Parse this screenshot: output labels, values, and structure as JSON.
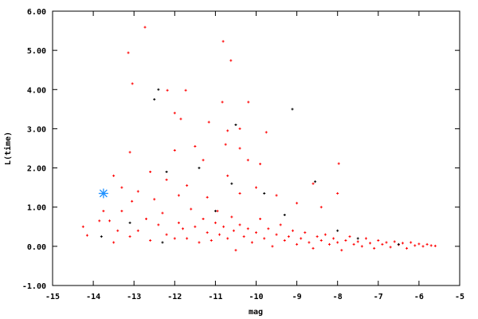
{
  "chart_data": {
    "type": "scatter",
    "title": "",
    "xlabel": "mag",
    "ylabel": "L(time)",
    "xlim": [
      -15,
      -5
    ],
    "ylim": [
      -1,
      6
    ],
    "xticks": [
      "-15",
      "-14",
      "-13",
      "-12",
      "-11",
      "-10",
      "-9",
      "-8",
      "-7",
      "-6",
      "-5"
    ],
    "yticks": [
      "-1.00",
      "0.00",
      "1.00",
      "2.00",
      "3.00",
      "4.00",
      "5.00",
      "6.00"
    ],
    "grid": false,
    "legend": "none",
    "series": [
      {
        "color": "#ff0000",
        "marker": "plus",
        "points": [
          [
            -12.73,
            5.59
          ],
          [
            -13.14,
            4.94
          ],
          [
            -13.04,
            4.15
          ],
          [
            -10.81,
            5.23
          ],
          [
            -10.62,
            4.74
          ],
          [
            -12.18,
            3.98
          ],
          [
            -11.73,
            3.98
          ],
          [
            -10.83,
            3.68
          ],
          [
            -10.19,
            3.68
          ],
          [
            -11.16,
            3.17
          ],
          [
            -12.0,
            3.4
          ],
          [
            -11.85,
            3.25
          ],
          [
            -10.4,
            3.0
          ],
          [
            -10.7,
            2.95
          ],
          [
            -9.75,
            2.91
          ],
          [
            -13.1,
            2.4
          ],
          [
            -12.0,
            2.45
          ],
          [
            -11.5,
            2.55
          ],
          [
            -10.75,
            2.6
          ],
          [
            -10.4,
            2.5
          ],
          [
            -11.3,
            2.2
          ],
          [
            -10.2,
            2.2
          ],
          [
            -9.9,
            2.1
          ],
          [
            -7.97,
            2.11
          ],
          [
            -13.5,
            1.8
          ],
          [
            -12.6,
            1.9
          ],
          [
            -12.2,
            1.7
          ],
          [
            -11.7,
            1.55
          ],
          [
            -10.7,
            1.8
          ],
          [
            -10.0,
            1.5
          ],
          [
            -9.5,
            1.3
          ],
          [
            -8.6,
            1.6
          ],
          [
            -8.0,
            1.35
          ],
          [
            -13.3,
            1.5
          ],
          [
            -12.9,
            1.4
          ],
          [
            -13.05,
            1.15
          ],
          [
            -12.5,
            1.2
          ],
          [
            -11.9,
            1.3
          ],
          [
            -11.2,
            1.25
          ],
          [
            -10.4,
            1.35
          ],
          [
            -9.0,
            1.1
          ],
          [
            -8.4,
            1.0
          ],
          [
            -14.25,
            0.5
          ],
          [
            -14.15,
            0.28
          ],
          [
            -13.85,
            0.65
          ],
          [
            -13.75,
            0.9
          ],
          [
            -13.6,
            0.65
          ],
          [
            -13.4,
            0.4
          ],
          [
            -13.3,
            0.9
          ],
          [
            -13.5,
            0.1
          ],
          [
            -13.1,
            0.25
          ],
          [
            -12.9,
            0.4
          ],
          [
            -12.7,
            0.7
          ],
          [
            -12.6,
            0.15
          ],
          [
            -12.4,
            0.55
          ],
          [
            -12.3,
            0.85
          ],
          [
            -12.2,
            0.3
          ],
          [
            -12.0,
            0.2
          ],
          [
            -11.9,
            0.6
          ],
          [
            -11.8,
            0.45
          ],
          [
            -11.7,
            0.2
          ],
          [
            -11.6,
            0.95
          ],
          [
            -11.5,
            0.5
          ],
          [
            -11.4,
            0.1
          ],
          [
            -11.3,
            0.7
          ],
          [
            -11.2,
            0.35
          ],
          [
            -11.1,
            0.15
          ],
          [
            -11.0,
            0.6
          ],
          [
            -10.95,
            0.9
          ],
          [
            -10.9,
            0.3
          ],
          [
            -10.8,
            0.5
          ],
          [
            -10.7,
            0.2
          ],
          [
            -10.6,
            0.75
          ],
          [
            -10.55,
            0.4
          ],
          [
            -10.5,
            -0.1
          ],
          [
            -10.4,
            0.55
          ],
          [
            -10.3,
            0.25
          ],
          [
            -10.2,
            0.45
          ],
          [
            -10.1,
            0.1
          ],
          [
            -10.0,
            0.35
          ],
          [
            -9.9,
            0.7
          ],
          [
            -9.8,
            0.2
          ],
          [
            -9.7,
            0.45
          ],
          [
            -9.6,
            0.0
          ],
          [
            -9.5,
            0.3
          ],
          [
            -9.4,
            0.55
          ],
          [
            -9.3,
            0.15
          ],
          [
            -9.2,
            0.25
          ],
          [
            -9.1,
            0.4
          ],
          [
            -9.0,
            0.05
          ],
          [
            -8.9,
            0.2
          ],
          [
            -8.8,
            0.35
          ],
          [
            -8.7,
            0.1
          ],
          [
            -8.6,
            -0.05
          ],
          [
            -8.5,
            0.25
          ],
          [
            -8.4,
            0.15
          ],
          [
            -8.3,
            0.3
          ],
          [
            -8.2,
            0.05
          ],
          [
            -8.1,
            0.2
          ],
          [
            -8.0,
            0.1
          ],
          [
            -7.9,
            -0.1
          ],
          [
            -7.8,
            0.15
          ],
          [
            -7.7,
            0.25
          ],
          [
            -7.6,
            0.05
          ],
          [
            -7.5,
            0.12
          ],
          [
            -7.4,
            0.0
          ],
          [
            -7.3,
            0.2
          ],
          [
            -7.2,
            0.08
          ],
          [
            -7.1,
            -0.05
          ],
          [
            -7.0,
            0.15
          ],
          [
            -6.9,
            0.05
          ],
          [
            -6.8,
            0.1
          ],
          [
            -6.7,
            -0.02
          ],
          [
            -6.6,
            0.12
          ],
          [
            -6.5,
            0.04
          ],
          [
            -6.4,
            0.08
          ],
          [
            -6.3,
            -0.05
          ],
          [
            -6.2,
            0.1
          ],
          [
            -6.1,
            0.02
          ],
          [
            -6.0,
            0.06
          ],
          [
            -5.9,
            0.0
          ],
          [
            -5.8,
            0.05
          ],
          [
            -5.7,
            0.02
          ],
          [
            -5.6,
            0.01
          ]
        ]
      },
      {
        "color": "#000000",
        "marker": "plus",
        "points": [
          [
            -9.11,
            3.5
          ],
          [
            -12.4,
            4.0
          ],
          [
            -12.5,
            3.75
          ],
          [
            -10.5,
            3.1
          ],
          [
            -11.4,
            2.0
          ],
          [
            -12.2,
            1.9
          ],
          [
            -10.6,
            1.6
          ],
          [
            -9.8,
            1.35
          ],
          [
            -8.55,
            1.65
          ],
          [
            -13.1,
            0.6
          ],
          [
            -13.8,
            0.25
          ],
          [
            -12.3,
            0.1
          ],
          [
            -11.0,
            0.9
          ],
          [
            -9.3,
            0.8
          ],
          [
            -8.0,
            0.4
          ],
          [
            -7.5,
            0.2
          ],
          [
            -6.5,
            0.05
          ]
        ]
      },
      {
        "color": "#1e90ff",
        "marker": "star",
        "points": [
          [
            -13.75,
            1.35
          ]
        ]
      }
    ]
  }
}
